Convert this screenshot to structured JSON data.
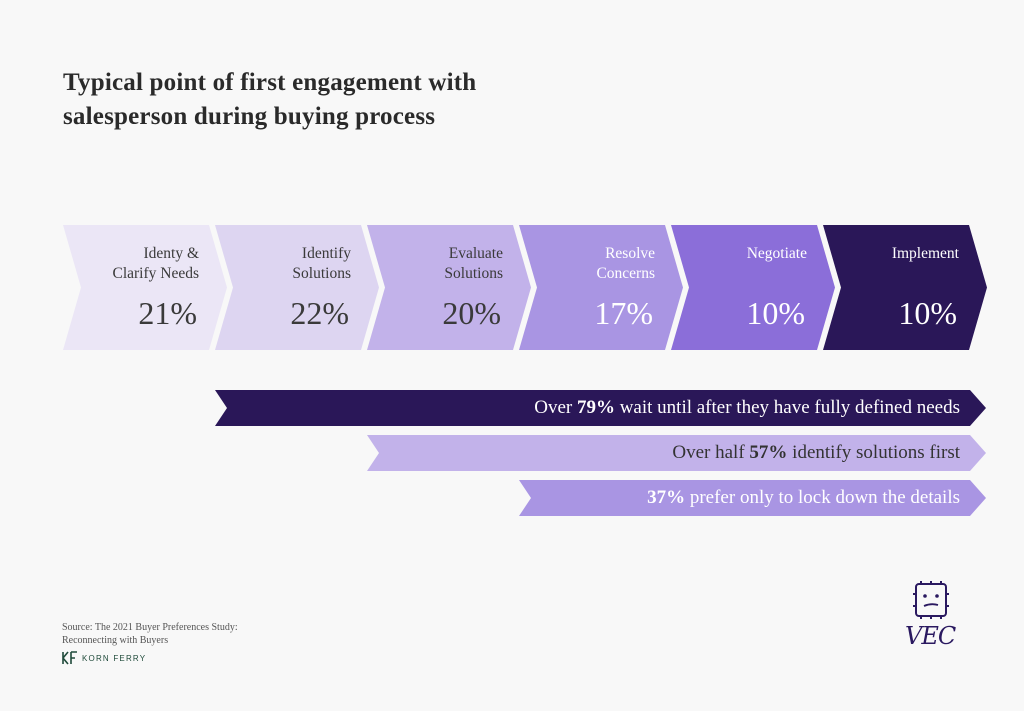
{
  "title": {
    "line1": "Typical point of first engagement with",
    "line2": "salesperson during buying process"
  },
  "stages": [
    {
      "label1": "Identy &",
      "label2": "Clarify Needs",
      "pct": "21%",
      "value": 21,
      "bg": "#ebe6f6",
      "fg": "#3a3a3a"
    },
    {
      "label1": "Identify",
      "label2": "Solutions",
      "pct": "22%",
      "value": 22,
      "bg": "#ddd5f1",
      "fg": "#3a3a3a"
    },
    {
      "label1": "Evaluate",
      "label2": "Solutions",
      "pct": "20%",
      "value": 20,
      "bg": "#c2b2ea",
      "fg": "#3a3a3a"
    },
    {
      "label1": "Resolve",
      "label2": "Concerns",
      "pct": "17%",
      "value": 17,
      "bg": "#a995e3",
      "fg": "#ffffff"
    },
    {
      "label1": "Negotiate",
      "label2": "",
      "pct": "10%",
      "value": 10,
      "bg": "#8b6ed9",
      "fg": "#ffffff"
    },
    {
      "label1": "Implement",
      "label2": "",
      "pct": "10%",
      "value": 10,
      "bg": "#2a1758",
      "fg": "#ffffff"
    }
  ],
  "banners": [
    {
      "before": "Over ",
      "bold": "79%",
      "after": " wait until after they have fully defined needs",
      "bg": "#2a1758",
      "fg": "#ffffff"
    },
    {
      "before": "Over half ",
      "bold": "57%",
      "after": " identify solutions first",
      "bg": "#c2b2ea",
      "fg": "#333333"
    },
    {
      "before": "",
      "bold": "37%",
      "after": " prefer only to lock down the details",
      "bg": "#a995e3",
      "fg": "#ffffff"
    }
  ],
  "source": {
    "line1": "Source: The 2021 Buyer Preferences Study:",
    "line2": "Reconnecting with Buyers"
  },
  "korn_ferry": {
    "name": "KORN FERRY",
    "color": "#1f4a3a"
  },
  "logo": {
    "text": "VEC",
    "icon": "robot-face-icon",
    "color": "#2a1960"
  }
}
